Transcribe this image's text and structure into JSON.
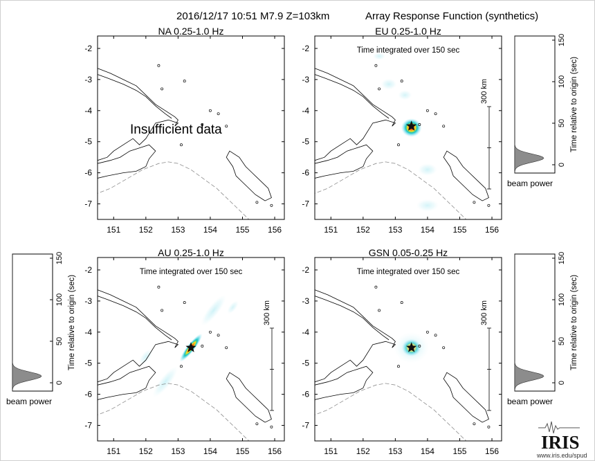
{
  "header": {
    "event": "2016/12/17 10:51  M7.9  Z=103km",
    "product": "Array Response Function (synthetics)"
  },
  "colors": {
    "coast": "#000000",
    "trench": "#8a8a8a",
    "beam_cyan": "#7fe0ee",
    "beam_peak": "#e8262a",
    "histogram": "#8c8c8c"
  },
  "chart_data": [
    {
      "type": "heatmap",
      "panel": "NA",
      "title": "NA  0.25-1.0 Hz",
      "subtitle": "",
      "note": "Insufficient data",
      "xlim": [
        150.5,
        156.3
      ],
      "ylim": [
        -7.5,
        -1.6
      ],
      "xticks": [
        151,
        152,
        153,
        154,
        155,
        156
      ],
      "yticks": [
        -2,
        -3,
        -4,
        -5,
        -6,
        -7
      ],
      "scalebar": "",
      "blobs": []
    },
    {
      "type": "heatmap",
      "panel": "EU",
      "title": "EU  0.25-1.0 Hz",
      "subtitle": "Time integrated over 150 sec",
      "note": "",
      "xlim": [
        150.5,
        156.3
      ],
      "ylim": [
        -7.5,
        -1.6
      ],
      "xticks": [
        151,
        152,
        153,
        154,
        155,
        156
      ],
      "yticks": [
        -2,
        -3,
        -4,
        -5,
        -6,
        -7
      ],
      "scalebar": "300 km",
      "epicenter": [
        153.5,
        -4.5
      ],
      "blobs": [
        {
          "x": 153.5,
          "y": -4.55,
          "rx": 0.32,
          "ry": 0.3,
          "angle": 0,
          "peak": 1.0
        },
        {
          "x": 152.8,
          "y": -3.15,
          "rx": 0.25,
          "ry": 0.18,
          "angle": 0,
          "peak": 0.25
        },
        {
          "x": 153.3,
          "y": -3.5,
          "rx": 0.22,
          "ry": 0.16,
          "angle": 0,
          "peak": 0.2
        },
        {
          "x": 152.5,
          "y": -2.25,
          "rx": 0.2,
          "ry": 0.12,
          "angle": 0,
          "peak": 0.15
        },
        {
          "x": 154.0,
          "y": -5.9,
          "rx": 0.3,
          "ry": 0.2,
          "angle": 0,
          "peak": 0.25
        },
        {
          "x": 154.0,
          "y": -7.05,
          "rx": 0.35,
          "ry": 0.2,
          "angle": 0,
          "peak": 0.2
        }
      ]
    },
    {
      "type": "heatmap",
      "panel": "AU",
      "title": "AU  0.25-1.0 Hz",
      "subtitle": "Time integrated over 150 sec",
      "note": "",
      "xlim": [
        150.5,
        156.3
      ],
      "ylim": [
        -7.5,
        -1.6
      ],
      "xticks": [
        151,
        152,
        153,
        154,
        155,
        156
      ],
      "yticks": [
        -2,
        -3,
        -4,
        -5,
        -6,
        -7
      ],
      "scalebar": "300 km",
      "epicenter": [
        153.4,
        -4.5
      ],
      "blobs": [
        {
          "x": 153.4,
          "y": -4.5,
          "rx": 0.55,
          "ry": 0.13,
          "angle": -52,
          "peak": 1.0
        },
        {
          "x": 154.1,
          "y": -3.3,
          "rx": 0.6,
          "ry": 0.18,
          "angle": -52,
          "peak": 0.3
        },
        {
          "x": 152.6,
          "y": -5.6,
          "rx": 0.6,
          "ry": 0.18,
          "angle": -52,
          "peak": 0.3
        },
        {
          "x": 152.0,
          "y": -4.8,
          "rx": 0.3,
          "ry": 0.15,
          "angle": -52,
          "peak": 0.2
        },
        {
          "x": 154.7,
          "y": -3.2,
          "rx": 0.25,
          "ry": 0.12,
          "angle": -52,
          "peak": 0.15
        }
      ]
    },
    {
      "type": "heatmap",
      "panel": "GSN",
      "title": "GSN  0.05-0.25 Hz",
      "subtitle": "Time integrated over 150 sec",
      "note": "",
      "xlim": [
        150.5,
        156.3
      ],
      "ylim": [
        -7.5,
        -1.6
      ],
      "xticks": [
        151,
        152,
        153,
        154,
        155,
        156
      ],
      "yticks": [
        -2,
        -3,
        -4,
        -5,
        -6,
        -7
      ],
      "scalebar": "300 km",
      "epicenter": [
        153.5,
        -4.5
      ],
      "blobs": [
        {
          "x": 153.5,
          "y": -4.5,
          "rx": 0.3,
          "ry": 0.28,
          "angle": 0,
          "peak": 0.85
        },
        {
          "x": 153.5,
          "y": -4.5,
          "rx": 0.55,
          "ry": 0.5,
          "angle": 0,
          "peak": 0.2
        }
      ]
    }
  ],
  "beam_power": {
    "ylabel": "Time relative to origin (sec)",
    "xlabel": "beam power",
    "ylim": [
      -10,
      155
    ],
    "yticks": [
      0,
      50,
      100,
      150
    ],
    "peak_time": 8,
    "width": 7
  }
}
